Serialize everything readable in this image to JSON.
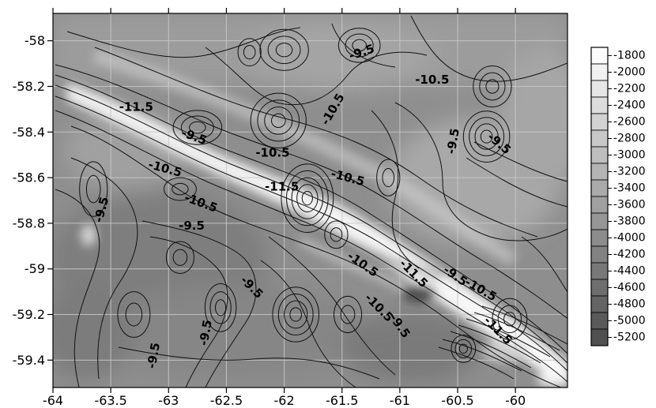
{
  "chart_data": {
    "type": "contour-map",
    "title": "",
    "xlabel": "",
    "ylabel": "",
    "xlim": [
      -64,
      -59.55
    ],
    "ylim": [
      -59.52,
      -57.88
    ],
    "x_ticks": [
      -64,
      -63.5,
      -63,
      -62.5,
      -62,
      -61.5,
      -61,
      -60.5,
      -60
    ],
    "x_tick_labels": [
      "-64",
      "-63.5",
      "-63",
      "-62.5",
      "-62",
      "-61.5",
      "-61",
      "-60.5",
      "-60"
    ],
    "y_ticks": [
      -58,
      -58.2,
      -58.4,
      -58.6,
      -58.8,
      -59,
      -59.2,
      -59.4
    ],
    "y_tick_labels": [
      "-58",
      "-58.2",
      "-58.4",
      "-58.6",
      "-58.8",
      "-59",
      "-59.2",
      "-59.4"
    ],
    "grid": true,
    "colorbar": {
      "values": [
        -1800,
        -2000,
        -2200,
        -2400,
        -2600,
        -2800,
        -3000,
        -3200,
        -3400,
        -3600,
        -3800,
        -4000,
        -4200,
        -4400,
        -4600,
        -4800,
        -5000,
        -5200
      ],
      "labels": [
        "-1800",
        "-2000",
        "-2200",
        "-2400",
        "-2600",
        "-2800",
        "-3000",
        "-3200",
        "-3400",
        "-3600",
        "-3800",
        "-4000",
        "-4200",
        "-4400",
        "-4600",
        "-4800",
        "-5000",
        "-5200"
      ],
      "colors": [
        "#fbfbfb",
        "#f1f1f1",
        "#e6e6e6",
        "#dcdcdc",
        "#d2d2d2",
        "#c8c8c8",
        "#bebebe",
        "#b4b4b4",
        "#aaaaaa",
        "#a0a0a0",
        "#969696",
        "#8c8c8c",
        "#828282",
        "#787878",
        "#6e6e6e",
        "#646464",
        "#5a5a5a",
        "#505050"
      ]
    },
    "contour_labels": [
      {
        "text": "-9.5",
        "x": -61.33,
        "y": -58.05,
        "angle": -18
      },
      {
        "text": "-10.5",
        "x": -60.72,
        "y": -58.17,
        "angle": 0
      },
      {
        "text": "-11.5",
        "x": -63.28,
        "y": -58.29,
        "angle": 0
      },
      {
        "text": "-10.5",
        "x": -61.58,
        "y": -58.3,
        "angle": -60
      },
      {
        "text": "-9.5",
        "x": -62.78,
        "y": -58.42,
        "angle": 20
      },
      {
        "text": "-10.5",
        "x": -62.1,
        "y": -58.49,
        "angle": 0
      },
      {
        "text": "-9.5",
        "x": -60.54,
        "y": -58.44,
        "angle": -80
      },
      {
        "text": "-9.5",
        "x": -60.14,
        "y": -58.45,
        "angle": 40
      },
      {
        "text": "-10.5",
        "x": -63.03,
        "y": -58.56,
        "angle": 15
      },
      {
        "text": "-11.5",
        "x": -62.02,
        "y": -58.64,
        "angle": 0
      },
      {
        "text": "-10.5",
        "x": -61.45,
        "y": -58.6,
        "angle": 15
      },
      {
        "text": "-9.5",
        "x": -63.58,
        "y": -58.74,
        "angle": -75
      },
      {
        "text": "-10.5",
        "x": -62.72,
        "y": -58.71,
        "angle": 20
      },
      {
        "text": "-9.5",
        "x": -62.8,
        "y": -58.81,
        "angle": 0
      },
      {
        "text": "-10.5",
        "x": -61.32,
        "y": -58.98,
        "angle": 35
      },
      {
        "text": "-11.5",
        "x": -60.88,
        "y": -59.02,
        "angle": 45
      },
      {
        "text": "-9.5",
        "x": -60.52,
        "y": -59.03,
        "angle": 35
      },
      {
        "text": "-10.5",
        "x": -60.3,
        "y": -59.09,
        "angle": 30
      },
      {
        "text": "-9.5",
        "x": -62.28,
        "y": -59.08,
        "angle": 45
      },
      {
        "text": "-10.5",
        "x": -61.18,
        "y": -59.17,
        "angle": 45
      },
      {
        "text": "-9.5",
        "x": -61.0,
        "y": -59.25,
        "angle": 55
      },
      {
        "text": "-11.5",
        "x": -60.15,
        "y": -59.27,
        "angle": 45
      },
      {
        "text": "-9.5",
        "x": -62.68,
        "y": -59.28,
        "angle": -80
      },
      {
        "text": "-9.5",
        "x": -63.13,
        "y": -59.38,
        "angle": -80
      }
    ]
  }
}
